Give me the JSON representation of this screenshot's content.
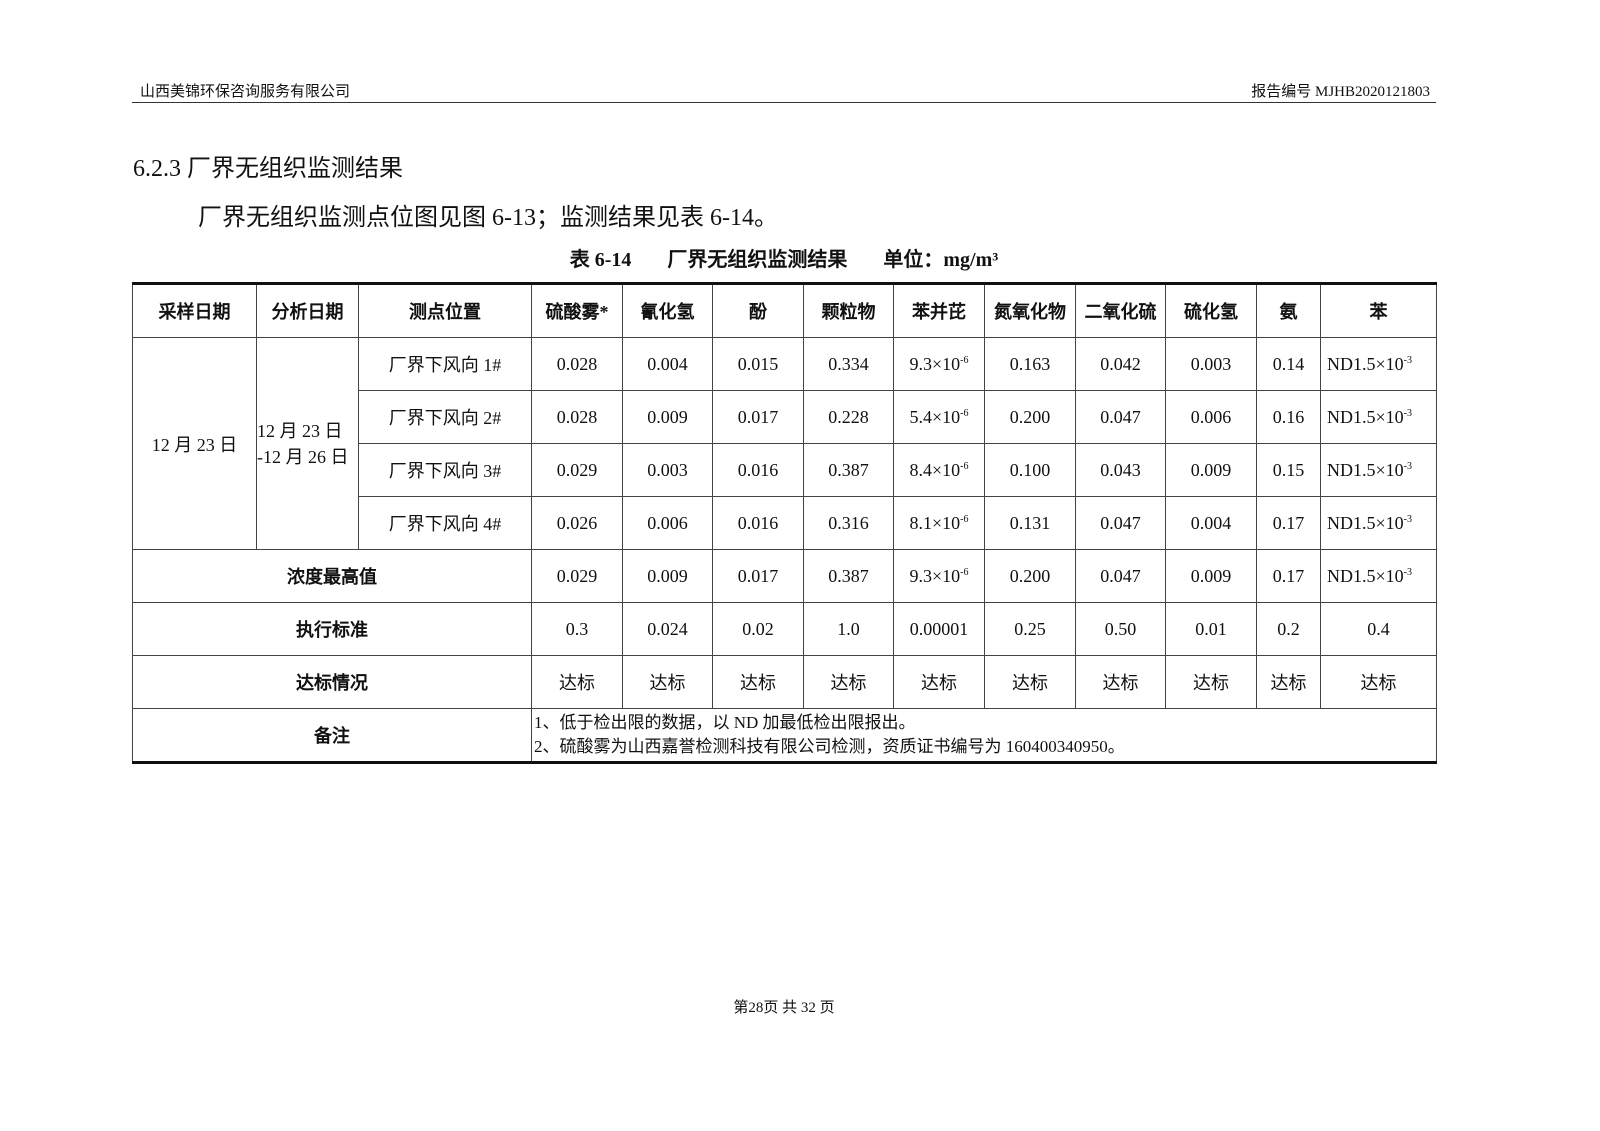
{
  "header": {
    "company": "山西美锦环保咨询服务有限公司",
    "report_no": "报告编号 MJHB2020121803"
  },
  "section_title": "6.2.3 厂界无组织监测结果",
  "paragraph": "厂界无组织监测点位图见图 6-13；监测结果见表 6-14。",
  "caption": {
    "table_no": "表 6-14",
    "title": "厂界无组织监测结果",
    "unit": "单位：mg/m³"
  },
  "table": {
    "headers": [
      "采样日期",
      "分析日期",
      "测点位置",
      "硫酸雾*",
      "氰化氢",
      "酚",
      "颗粒物",
      "苯并芘",
      "氮氧化物",
      "二氧化硫",
      "硫化氢",
      "氨",
      "苯"
    ],
    "sample_date": "12 月 23 日",
    "analysis_date": "12 月 23 日 -12 月 26 日",
    "rows": [
      {
        "site": "厂界下风向 1#",
        "v": [
          "0.028",
          "0.004",
          "0.015",
          "0.334"
        ],
        "bap": "9.3×10",
        "bap_exp": "-6",
        "w": [
          "0.163",
          "0.042",
          "0.003",
          "0.14"
        ],
        "benzene": "ND1.5×10",
        "benzene_exp": "-3"
      },
      {
        "site": "厂界下风向 2#",
        "v": [
          "0.028",
          "0.009",
          "0.017",
          "0.228"
        ],
        "bap": "5.4×10",
        "bap_exp": "-6",
        "w": [
          "0.200",
          "0.047",
          "0.006",
          "0.16"
        ],
        "benzene": "ND1.5×10",
        "benzene_exp": "-3"
      },
      {
        "site": "厂界下风向 3#",
        "v": [
          "0.029",
          "0.003",
          "0.016",
          "0.387"
        ],
        "bap": "8.4×10",
        "bap_exp": "-6",
        "w": [
          "0.100",
          "0.043",
          "0.009",
          "0.15"
        ],
        "benzene": "ND1.5×10",
        "benzene_exp": "-3"
      },
      {
        "site": "厂界下风向 4#",
        "v": [
          "0.026",
          "0.006",
          "0.016",
          "0.316"
        ],
        "bap": "8.1×10",
        "bap_exp": "-6",
        "w": [
          "0.131",
          "0.047",
          "0.004",
          "0.17"
        ],
        "benzene": "ND1.5×10",
        "benzene_exp": "-3"
      }
    ],
    "max": {
      "label": "浓度最高值",
      "v": [
        "0.029",
        "0.009",
        "0.017",
        "0.387"
      ],
      "bap": "9.3×10",
      "bap_exp": "-6",
      "w": [
        "0.200",
        "0.047",
        "0.009",
        "0.17"
      ],
      "benzene": "ND1.5×10",
      "benzene_exp": "-3"
    },
    "standard": {
      "label": "执行标准",
      "values": [
        "0.3",
        "0.024",
        "0.02",
        "1.0",
        "0.00001",
        "0.25",
        "0.50",
        "0.01",
        "0.2",
        "0.4"
      ]
    },
    "compliance": {
      "label": "达标情况",
      "value": "达标"
    },
    "notes": {
      "label": "备注",
      "lines": [
        "1、低于检出限的数据，以 ND 加最低检出限报出。",
        "2、硫酸雾为山西嘉誉检测科技有限公司检测，资质证书编号为 160400340950。"
      ]
    }
  },
  "footer": "第28页  共 32 页"
}
